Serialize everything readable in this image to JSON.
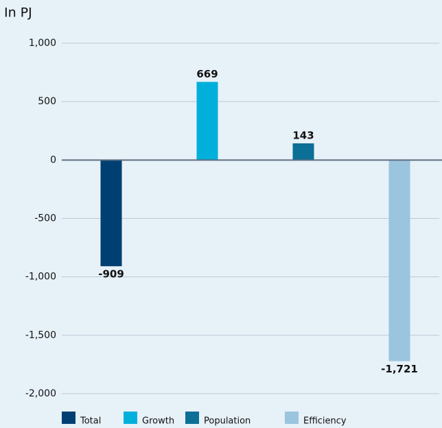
{
  "chart_data": {
    "type": "bar",
    "y_label": "In PJ",
    "series": [
      {
        "name": "Total",
        "color": "#003f72",
        "values": [
          -909
        ]
      },
      {
        "name": "Growth",
        "color": "#00b0da",
        "values": [
          669
        ]
      },
      {
        "name": "Population",
        "color": "#0b6f96",
        "values": [
          143
        ]
      },
      {
        "name": "Efficiency",
        "color": "#9bc4de",
        "values": [
          -1721
        ],
        "value_labels": [
          "-1,721"
        ]
      }
    ],
    "ylim": [
      -2000,
      1000
    ],
    "yticks": [
      {
        "value": 1000,
        "label": "1,000"
      },
      500,
      0,
      -500,
      {
        "value": -1000,
        "label": "-1,000"
      },
      {
        "value": -1500,
        "label": "-1,500"
      },
      {
        "value": -2000,
        "label": "-2,000"
      }
    ],
    "grid": true
  }
}
